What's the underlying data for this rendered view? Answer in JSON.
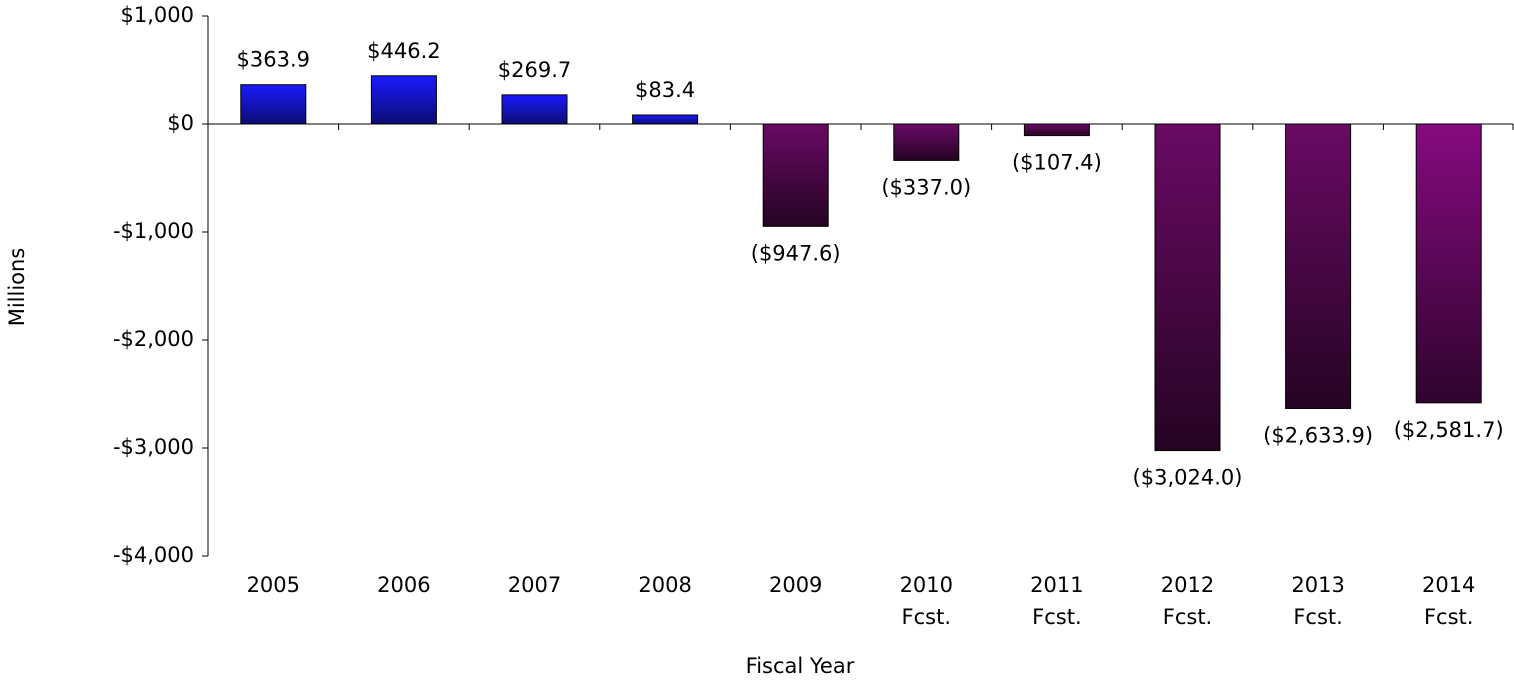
{
  "chart_data": {
    "type": "bar",
    "x_label": "Fiscal Year",
    "y_label": "Millions",
    "categories": [
      "2005",
      "2006",
      "2007",
      "2008",
      "2009",
      "2010 Fcst.",
      "2011 Fcst.",
      "2012 Fcst.",
      "2013 Fcst.",
      "2014 Fcst."
    ],
    "values": [
      363.9,
      446.2,
      269.7,
      83.4,
      -947.6,
      -337.0,
      -107.4,
      -3024.0,
      -2633.9,
      -2581.7
    ],
    "value_labels": [
      "$363.9",
      "$446.2",
      "$269.7",
      "$83.4",
      "($947.6)",
      "($337.0)",
      "($107.4)",
      "($3,024.0)",
      "($2,633.9)",
      "($2,581.7)"
    ],
    "colors": [
      "#1a1aff",
      "#1a1aff",
      "#1a1aff",
      "#1a1aff",
      "#6a0a64",
      "#6a0a64",
      "#6a0a64",
      "#6a0a64",
      "#6a0a64",
      "#860a80"
    ],
    "ylim": [
      -4000,
      1000
    ],
    "yticks": [
      {
        "value": -4000,
        "label": "-$4,000"
      },
      {
        "value": -3000,
        "label": "-$3,000"
      },
      {
        "value": -2000,
        "label": "-$2,000"
      },
      {
        "value": -1000,
        "label": "-$1,000"
      },
      {
        "value": 0,
        "label": "$0"
      },
      {
        "value": 1000,
        "label": "$1,000"
      }
    ],
    "grid": false
  }
}
